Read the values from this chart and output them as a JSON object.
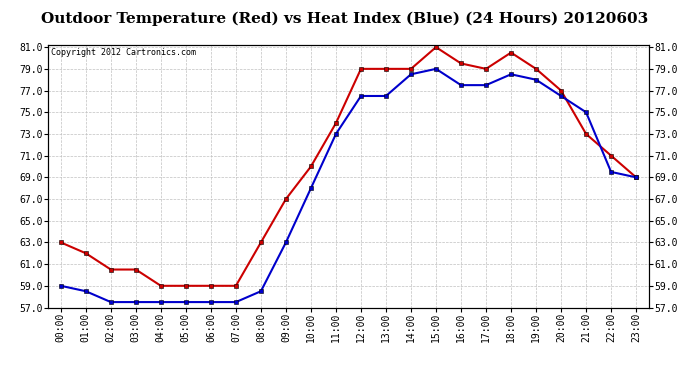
{
  "title": "Outdoor Temperature (Red) vs Heat Index (Blue) (24 Hours) 20120603",
  "copyright_text": "Copyright 2012 Cartronics.com",
  "hours": [
    "00:00",
    "01:00",
    "02:00",
    "03:00",
    "04:00",
    "05:00",
    "06:00",
    "07:00",
    "08:00",
    "09:00",
    "10:00",
    "11:00",
    "12:00",
    "13:00",
    "14:00",
    "15:00",
    "16:00",
    "17:00",
    "18:00",
    "19:00",
    "20:00",
    "21:00",
    "22:00",
    "23:00"
  ],
  "red_temp": [
    63.0,
    62.0,
    60.5,
    60.5,
    59.0,
    59.0,
    59.0,
    59.0,
    63.0,
    67.0,
    70.0,
    74.0,
    79.0,
    79.0,
    79.0,
    81.0,
    79.5,
    79.0,
    80.5,
    79.0,
    77.0,
    73.0,
    71.0,
    69.0
  ],
  "blue_heat": [
    59.0,
    58.5,
    57.5,
    57.5,
    57.5,
    57.5,
    57.5,
    57.5,
    58.5,
    63.0,
    68.0,
    73.0,
    76.5,
    76.5,
    78.5,
    79.0,
    77.5,
    77.5,
    78.5,
    78.0,
    76.5,
    75.0,
    69.5,
    69.0
  ],
  "red_color": "#cc0000",
  "blue_color": "#0000cc",
  "bg_color": "#ffffff",
  "plot_bg_color": "#ffffff",
  "grid_color": "#c0c0c0",
  "ylim_min": 57.0,
  "ylim_max": 81.0,
  "ytick_step": 2.0,
  "title_fontsize": 11,
  "copyright_fontsize": 6,
  "tick_fontsize": 7,
  "marker": "s",
  "marker_size": 3,
  "line_width": 1.5
}
